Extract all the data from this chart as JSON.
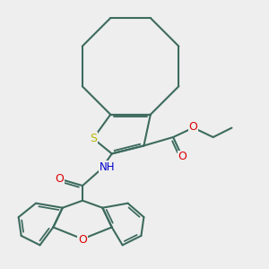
{
  "bg_color": "#eeeeee",
  "bond_color": "#3d6b5e",
  "S_color": "#b8b800",
  "N_color": "#0000cc",
  "O_color": "#dd0000",
  "bond_width": 1.5,
  "figsize": [
    3.0,
    3.0
  ],
  "dpi": 100,
  "xlim": [
    0.0,
    10.0
  ],
  "ylim": [
    0.3,
    10.3
  ]
}
